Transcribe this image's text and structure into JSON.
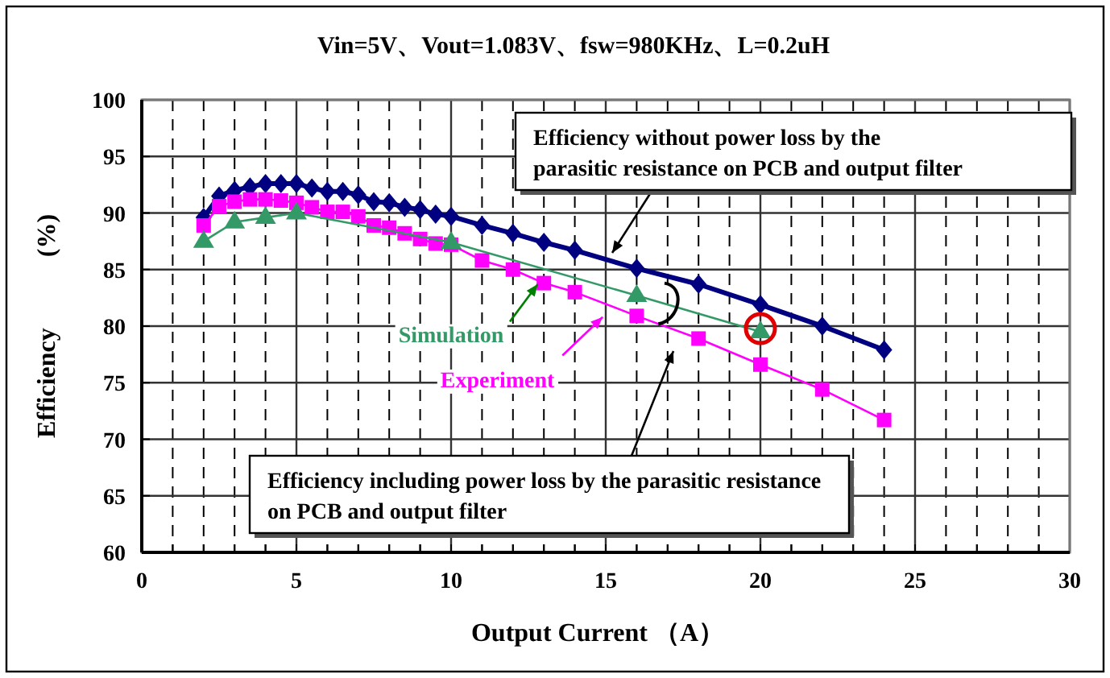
{
  "chart_data": {
    "type": "line",
    "title": "Vin=5V、Vout=1.083V、fsw=980KHz、L=0.2uH",
    "xlabel": "Output Current （A）",
    "ylabel": "Efficiency (%)",
    "annotations": [
      "Efficiency without power loss by the parasitic resistance on PCB and output filter",
      "Efficiency including power loss by the parasitic resistance on PCB and output filter"
    ],
    "xlim": [
      0,
      30
    ],
    "ylim": [
      60,
      100
    ],
    "xticks": [
      0,
      {
        "value": 1,
        "label": null
      },
      {
        "value": 2,
        "label": null
      },
      {
        "value": 3,
        "label": null
      },
      {
        "value": 4,
        "label": null
      },
      5,
      {
        "value": 6,
        "label": null
      },
      {
        "value": 7,
        "label": null
      },
      {
        "value": 8,
        "label": null
      },
      {
        "value": 9,
        "label": null
      },
      10,
      {
        "value": 11,
        "label": null
      },
      {
        "value": 12,
        "label": null
      },
      {
        "value": 13,
        "label": null
      },
      {
        "value": 14,
        "label": null
      },
      15,
      {
        "value": 16,
        "label": null
      },
      {
        "value": 17,
        "label": null
      },
      {
        "value": 18,
        "label": null
      },
      {
        "value": 19,
        "label": null
      },
      20,
      {
        "value": 21,
        "label": null
      },
      {
        "value": 22,
        "label": null
      },
      {
        "value": 23,
        "label": null
      },
      {
        "value": 24,
        "label": null
      },
      25,
      {
        "value": 26,
        "label": null
      },
      {
        "value": 27,
        "label": null
      },
      {
        "value": 28,
        "label": null
      },
      {
        "value": 29,
        "label": null
      },
      30
    ],
    "yticks": [
      60,
      65,
      70,
      75,
      80,
      85,
      90,
      95,
      100
    ],
    "grid": true,
    "series": [
      {
        "color": "#000080",
        "marker": "diamond",
        "x": [
          2,
          2.5,
          3,
          3.5,
          4,
          4.5,
          5,
          5.5,
          6,
          6.5,
          7,
          7.5,
          8,
          8.5,
          9,
          9.5,
          10,
          11,
          12,
          13,
          14,
          16,
          18,
          20,
          22,
          24
        ],
        "values": [
          89.6,
          91.5,
          92.0,
          92.3,
          92.6,
          92.6,
          92.6,
          92.2,
          91.9,
          91.9,
          91.6,
          91.0,
          90.9,
          90.5,
          90.3,
          89.9,
          89.7,
          88.9,
          88.2,
          87.4,
          86.7,
          85.1,
          83.7,
          81.9,
          80.0,
          77.9
        ]
      },
      {
        "name": "Simulation",
        "color": "#339966",
        "marker": "triangle",
        "x": [
          2,
          3,
          4,
          5,
          10,
          16,
          20
        ],
        "values": [
          87.5,
          89.2,
          89.6,
          90.0,
          87.4,
          82.7,
          79.5
        ]
      },
      {
        "name": "Experiment",
        "color": "#ff00ff",
        "marker": "square",
        "x": [
          2,
          2.5,
          3,
          3.5,
          4,
          4.5,
          5,
          5.5,
          6,
          6.5,
          7,
          7.5,
          8,
          8.5,
          9,
          9.5,
          10,
          11,
          12,
          13,
          14,
          16,
          18,
          20,
          22,
          24
        ],
        "values": [
          88.9,
          90.6,
          91.0,
          91.2,
          91.2,
          91.1,
          90.9,
          90.5,
          90.1,
          90.1,
          89.7,
          88.9,
          88.7,
          88.2,
          87.7,
          87.3,
          87.2,
          85.8,
          85.0,
          83.8,
          83.0,
          80.9,
          78.9,
          76.6,
          74.4,
          71.7
        ]
      }
    ]
  }
}
